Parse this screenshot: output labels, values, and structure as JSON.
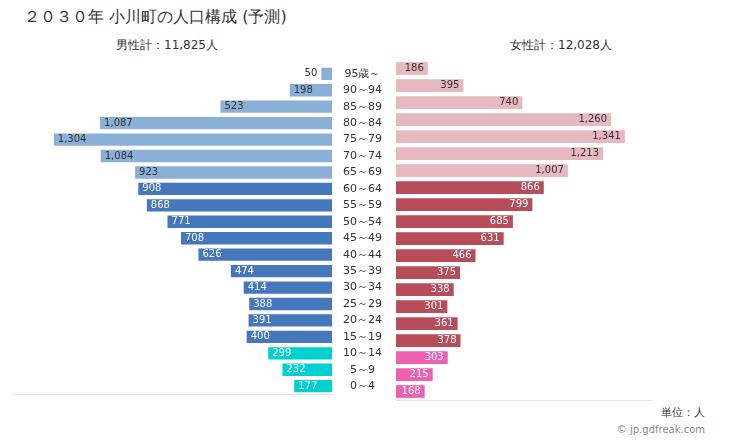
{
  "chart_data": {
    "type": "bar",
    "orientation": "horizontal",
    "title": "２０３０年 小川町の人口構成 (予測)",
    "categories": [
      "0～4",
      "5～9",
      "10～14",
      "15～19",
      "20～24",
      "25～29",
      "30～34",
      "35～39",
      "40～44",
      "45～49",
      "50～54",
      "55～59",
      "60～64",
      "65～69",
      "70～74",
      "75～79",
      "80～84",
      "85～89",
      "90～94",
      "95歳～"
    ],
    "series": [
      {
        "name": "男性計：11,825人",
        "values": [
          177,
          232,
          299,
          400,
          391,
          388,
          414,
          474,
          626,
          708,
          771,
          868,
          908,
          923,
          1084,
          1304,
          1087,
          523,
          198,
          50
        ],
        "value_labels": [
          "177",
          "232",
          "299",
          "400",
          "391",
          "388",
          "414",
          "474",
          "626",
          "708",
          "771",
          "868",
          "908",
          "923",
          "1,084",
          "1,304",
          "1,087",
          "523",
          "198",
          "50"
        ],
        "colors": [
          "#00d0d0",
          "#00d0d0",
          "#00d0d0",
          "#4477bb",
          "#4477bb",
          "#4477bb",
          "#4477bb",
          "#4477bb",
          "#4477bb",
          "#4477bb",
          "#4477bb",
          "#4477bb",
          "#4477bb",
          "#8ab0d8",
          "#8ab0d8",
          "#8ab0d8",
          "#8ab0d8",
          "#8ab0d8",
          "#8ab0d8",
          "#8ab0d8"
        ]
      },
      {
        "name": "女性計：12,028人",
        "values": [
          168,
          215,
          303,
          378,
          361,
          301,
          338,
          375,
          466,
          631,
          685,
          799,
          866,
          1007,
          1213,
          1341,
          1260,
          740,
          395,
          186
        ],
        "value_labels": [
          "168",
          "215",
          "303",
          "378",
          "361",
          "301",
          "338",
          "375",
          "466",
          "631",
          "685",
          "799",
          "866",
          "1,007",
          "1,213",
          "1,341",
          "1,260",
          "740",
          "395",
          "186"
        ],
        "colors": [
          "#f060b0",
          "#f060b0",
          "#f060b0",
          "#b84d5a",
          "#b84d5a",
          "#b84d5a",
          "#b84d5a",
          "#b84d5a",
          "#b84d5a",
          "#b84d5a",
          "#b84d5a",
          "#b84d5a",
          "#b84d5a",
          "#e8b8c0",
          "#e8b8c0",
          "#e8b8c0",
          "#e8b8c0",
          "#e8b8c0",
          "#e8b8c0",
          "#e8b8c0"
        ]
      }
    ],
    "xlim": [
      0,
      1500
    ],
    "tick_labels": "y",
    "data_labels": true,
    "grid": false,
    "annotations": [
      "単位：人",
      "© jp.gdfreak.com"
    ]
  }
}
